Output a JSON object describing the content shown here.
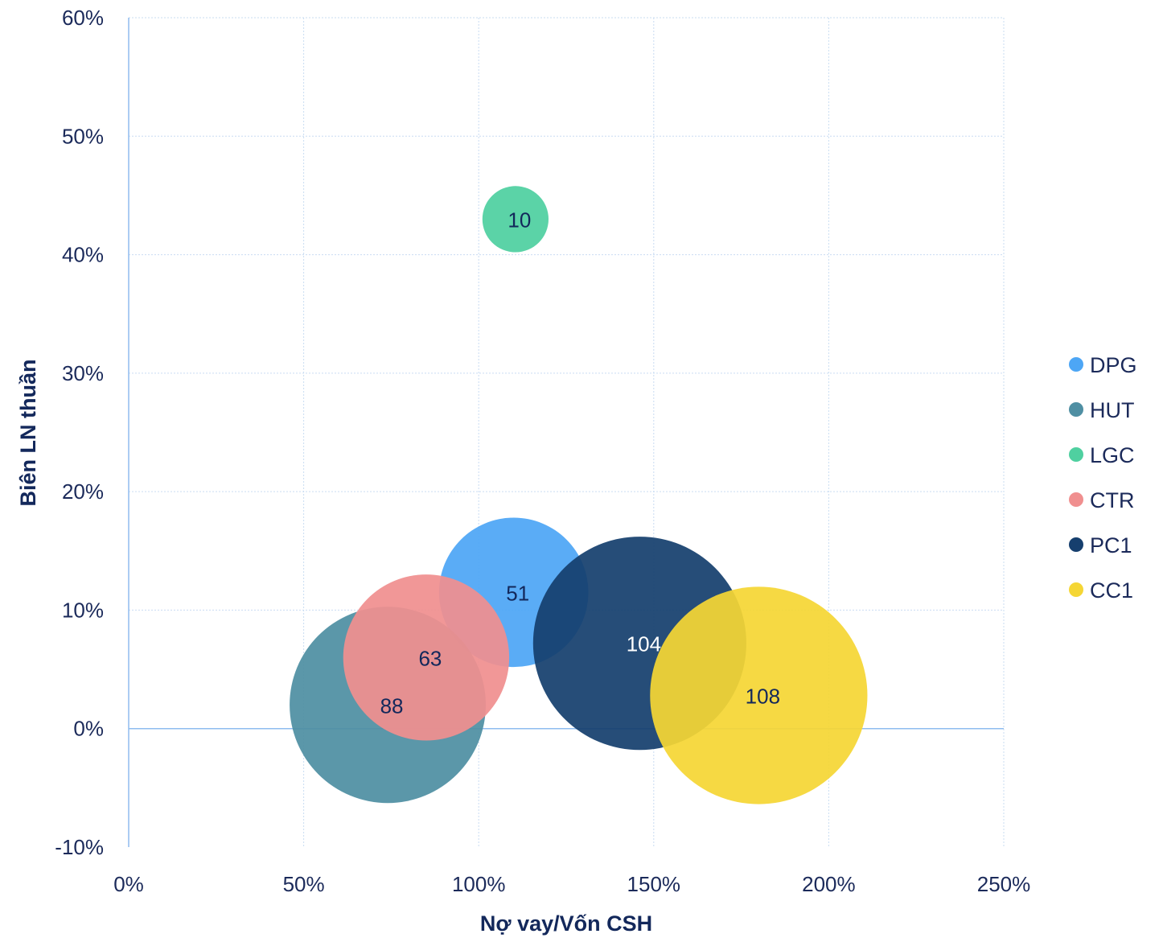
{
  "chart_data": {
    "type": "bubble",
    "xlabel": "Nợ vay/Vốn CSH",
    "ylabel": "Biên LN thuần",
    "xlim": [
      0,
      250
    ],
    "ylim": [
      -10,
      60
    ],
    "x_ticks": [
      "0%",
      "50%",
      "100%",
      "150%",
      "200%",
      "250%"
    ],
    "y_ticks": [
      "-10%",
      "0%",
      "10%",
      "20%",
      "30%",
      "40%",
      "50%",
      "60%"
    ],
    "grid": true,
    "legend_position": "right",
    "series": [
      {
        "name": "DPG",
        "x": 110,
        "y": 11.5,
        "size": 51,
        "label": "51",
        "color": "#4da6f5",
        "label_color": "#13285b"
      },
      {
        "name": "HUT",
        "x": 74,
        "y": 2,
        "size": 88,
        "label": "88",
        "color": "#4f8fa3",
        "label_color": "#13285b"
      },
      {
        "name": "LGC",
        "x": 110.5,
        "y": 43,
        "size": 10,
        "label": "10",
        "color": "#4fd0a0",
        "label_color": "#13285b"
      },
      {
        "name": "CTR",
        "x": 85,
        "y": 6,
        "size": 63,
        "label": "63",
        "color": "#f08f8f",
        "label_color": "#13285b"
      },
      {
        "name": "PC1",
        "x": 146,
        "y": 7.2,
        "size": 104,
        "label": "104",
        "color": "#163f6e",
        "label_color": "#ffffff"
      },
      {
        "name": "CC1",
        "x": 180,
        "y": 2.8,
        "size": 108,
        "label": "108",
        "color": "#f5d635",
        "label_color": "#13285b"
      }
    ]
  }
}
